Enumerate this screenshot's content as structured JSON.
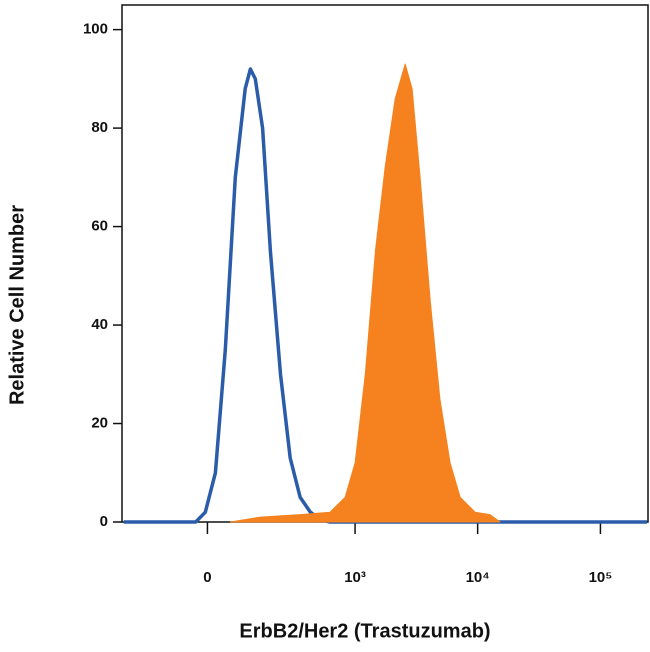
{
  "chart_data": {
    "type": "histogram-overlay",
    "xlabel": "ErbB2/Her2 (Trastuzumab)",
    "ylabel": "Relative Cell Number",
    "xscale": "biexponential",
    "xlim": [
      -300,
      244000
    ],
    "ylim": [
      0,
      105
    ],
    "xticks": [
      0,
      {
        "value": 1000,
        "label": "10³"
      },
      {
        "value": 10000,
        "label": "10⁴"
      },
      {
        "value": 100000,
        "label": "10⁵"
      }
    ],
    "yticks": [
      0,
      20,
      40,
      60,
      80,
      100
    ],
    "series": [
      {
        "color": "#2a5caa",
        "style": "outline",
        "x": [
          -290,
          -28,
          -5,
          19,
          43,
          69,
          97,
          113,
          129,
          155,
          186,
          232,
          284,
          348,
          425,
          516,
          621,
          240000
        ],
        "values": [
          0,
          0,
          2,
          10,
          35,
          70,
          88,
          92,
          90,
          80,
          55,
          30,
          13,
          5,
          2,
          0.5,
          0,
          0
        ]
      },
      {
        "color": "#f5821f",
        "style": "filled",
        "x": [
          56,
          147,
          348,
          621,
          828,
          1000,
          1212,
          1466,
          1760,
          2130,
          2570,
          2923,
          3400,
          4110,
          4930,
          5960,
          7210,
          9540,
          12600,
          15200
        ],
        "values": [
          0,
          1,
          1.5,
          2,
          5,
          12,
          30,
          55,
          72,
          86,
          93,
          88,
          70,
          45,
          25,
          12,
          5,
          2,
          1.5,
          0
        ]
      }
    ]
  }
}
